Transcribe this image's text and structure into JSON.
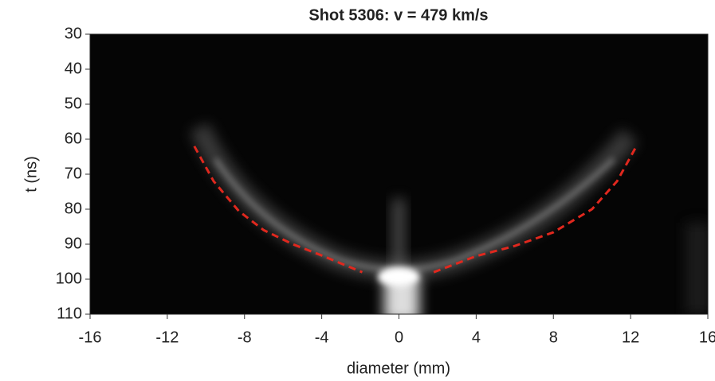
{
  "chart_data": {
    "type": "image",
    "title": "Shot 5306: v = 479 km/s",
    "xlabel": "diameter (mm)",
    "ylabel": "t (ns)",
    "xlim": [
      -16,
      16
    ],
    "xticks": [
      -16,
      -12,
      -8,
      -4,
      0,
      4,
      8,
      12,
      16
    ],
    "ylim": [
      110,
      30
    ],
    "yticks": [
      30,
      40,
      50,
      60,
      70,
      80,
      90,
      100,
      110
    ],
    "series": [
      {
        "color": "#e0281e",
        "x": [
          -10.6,
          -9.6,
          -8.3,
          -7,
          -5.5,
          -4.1,
          -3,
          -1.9
        ],
        "values": [
          62,
          72,
          80.5,
          86,
          90,
          93,
          95.5,
          98
        ]
      },
      {
        "color": "#e0281e",
        "x": [
          1.8,
          4,
          6,
          8,
          10,
          11.3,
          12.3
        ],
        "values": [
          98,
          93.4,
          90.5,
          86.6,
          80,
          72,
          62
        ]
      }
    ]
  }
}
